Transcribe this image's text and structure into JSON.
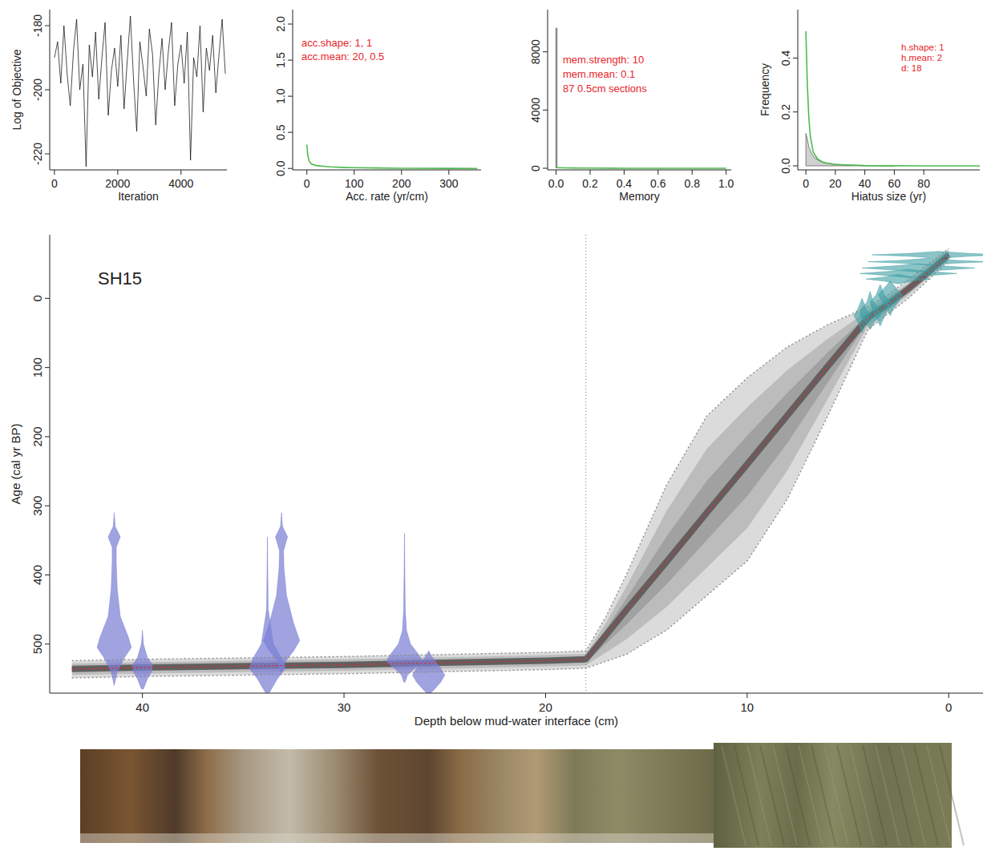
{
  "chart_data": [
    {
      "type": "line",
      "x_label": "Iteration",
      "y_label": "Log of Objective",
      "x": [
        0,
        100,
        200,
        300,
        400,
        500,
        600,
        700,
        800,
        900,
        1000,
        1100,
        1200,
        1300,
        1400,
        1500,
        1600,
        1700,
        1800,
        1900,
        2000,
        2100,
        2200,
        2300,
        2400,
        2500,
        2600,
        2700,
        2800,
        2900,
        3000,
        3100,
        3200,
        3300,
        3400,
        3500,
        3600,
        3700,
        3800,
        3900,
        4000,
        4100,
        4200,
        4300,
        4400,
        4500,
        4600,
        4700,
        4800,
        4900,
        5000,
        5100,
        5200,
        5300,
        5400
      ],
      "series": [
        {
          "color": "#000000",
          "values": [
            -190,
            -185,
            -198,
            -180,
            -195,
            -205,
            -188,
            -178,
            -200,
            -192,
            -224,
            -186,
            -196,
            -182,
            -203,
            -190,
            -179,
            -208,
            -194,
            -187,
            -199,
            -183,
            -206,
            -191,
            -177,
            -197,
            -213,
            -185,
            -193,
            -202,
            -181,
            -189,
            -211,
            -195,
            -184,
            -200,
            -188,
            -179,
            -205,
            -192,
            -186,
            -198,
            -182,
            -222,
            -190,
            -196,
            -180,
            -207,
            -187,
            -194,
            -183,
            -201,
            -189,
            -178,
            -195
          ]
        }
      ],
      "xlim": [
        -150,
        5450
      ],
      "xticks": [
        0,
        2000,
        4000
      ],
      "ylim": [
        -225,
        -175
      ],
      "yticks": [
        -220,
        -200,
        -180
      ]
    },
    {
      "type": "line",
      "x_label": "Acc. rate (yr/cm)",
      "annotations": [
        "acc.shape: 1, 1",
        "acc.mean: 20, 0.5"
      ],
      "series": [
        {
          "color": "#4dbb4d",
          "x": [
            0,
            2,
            5,
            10,
            20,
            35,
            50,
            75,
            100,
            150,
            200,
            300,
            360
          ],
          "values": [
            0.33,
            0.18,
            0.1,
            0.06,
            0.04,
            0.03,
            0.022,
            0.015,
            0.01,
            0.006,
            0.003,
            0.001,
            0
          ]
        }
      ],
      "xlim": [
        -30,
        368
      ],
      "xticks": [
        0,
        100,
        200,
        300
      ],
      "ylim": [
        -0.02,
        2.2
      ],
      "yticks": [
        {
          "value": 0,
          "label": "0.0"
        },
        {
          "value": 0.5,
          "label": "0.5"
        },
        {
          "value": 1,
          "label": "1.0"
        },
        {
          "value": 1.5,
          "label": "1.5"
        },
        {
          "value": 2,
          "label": "2.0"
        }
      ]
    },
    {
      "type": "line",
      "x_label": "Memory",
      "annotations": [
        "mem.strength: 10",
        "mem.mean: 0.1",
        "87 0.5cm sections"
      ],
      "series": [
        {
          "color": "#888888",
          "x": [
            0,
            0,
            0.004,
            0.004
          ],
          "values": [
            0,
            9600,
            9600,
            0
          ]
        },
        {
          "color": "#4dbb4d",
          "x": [
            0,
            0.05,
            0.1,
            0.2,
            0.4,
            0.6,
            0.8,
            1
          ],
          "values": [
            40,
            30,
            22,
            12,
            4,
            1,
            0,
            0
          ]
        }
      ],
      "xlim": [
        -0.05,
        1.03
      ],
      "xticks": [
        {
          "value": 0,
          "label": "0.0"
        },
        0.2,
        0.4,
        0.6,
        0.8,
        {
          "value": 1,
          "label": "1.0"
        }
      ],
      "ylim": [
        -110,
        10900
      ],
      "yticks": [
        0,
        4000,
        8000
      ]
    },
    {
      "type": "line",
      "x_label": "Hiatus size (yr)",
      "y_label": "Frequency",
      "annotations": [
        "h.shape: 1",
        "h.mean: 2",
        "d: 18"
      ],
      "series": [
        {
          "type": "area",
          "color": "#aaaaaa",
          "x": [
            0,
            1,
            2,
            4,
            6,
            8,
            10,
            15,
            20,
            30,
            40,
            60
          ],
          "values": [
            0.12,
            0.1,
            0.07,
            0.045,
            0.03,
            0.022,
            0.016,
            0.01,
            0.006,
            0.002,
            0.001,
            0
          ]
        },
        {
          "color": "#4dbb4d",
          "x": [
            0,
            1,
            2,
            3,
            5,
            8,
            12,
            20,
            40,
            80,
            118
          ],
          "values": [
            0.5,
            0.3,
            0.18,
            0.11,
            0.05,
            0.025,
            0.012,
            0.005,
            0.001,
            0,
            0
          ]
        }
      ],
      "xlim": [
        -5.5,
        118
      ],
      "xticks": [
        0,
        20,
        40,
        60,
        80
      ],
      "ylim": [
        -0.015,
        0.58
      ],
      "yticks": [
        {
          "value": 0,
          "label": "0.0"
        },
        0.2,
        0.4
      ]
    },
    {
      "type": "agedepth",
      "title": "SH15",
      "x_label": "Depth below mud-water interface (cm)",
      "y_label": "Age (cal yr BP)",
      "x": [
        43.5,
        40,
        35,
        30,
        25,
        20,
        18,
        17,
        16,
        14,
        12,
        10,
        8,
        6,
        4,
        3,
        2,
        1,
        0
      ],
      "series": [
        {
          "color": "#888888",
          "line_style": "dotted",
          "values": [
            524,
            522,
            520,
            518,
            515,
            512,
            510,
            460,
            400,
            270,
            170,
            115,
            70,
            38,
            12,
            -6,
            -27,
            -50,
            -72
          ]
        },
        {
          "color": "#e8242a",
          "line_style": "dotted",
          "values": [
            536,
            534,
            532,
            530,
            527,
            524,
            522,
            487,
            451,
            381,
            310,
            240,
            169,
            98,
            28,
            8,
            -14,
            -38,
            -63
          ]
        },
        {
          "color": "#888888",
          "line_style": "dotted",
          "values": [
            549,
            547,
            545,
            543,
            540,
            537,
            535,
            525,
            515,
            480,
            430,
            380,
            290,
            170,
            45,
            22,
            0,
            -27,
            -55
          ]
        }
      ],
      "xlim": [
        44.6,
        -1.7
      ],
      "xticks": [
        40,
        30,
        20,
        10,
        0
      ],
      "ylim": [
        571,
        -92
      ],
      "yticks": [
        0,
        100,
        200,
        300,
        400,
        500
      ],
      "hiatus_depth": 18,
      "calibrated_dates": {
        "color": "#7b7fd4",
        "dates": [
          {
            "depth": 41.4,
            "ages": [
              310,
              330,
              345,
              360,
              380,
              420,
              460,
              490,
              505,
              520,
              540,
              560
            ],
            "density": [
              0,
              0.05,
              0.3,
              0.1,
              0.1,
              0.15,
              0.3,
              0.7,
              0.85,
              0.5,
              0.15,
              0
            ]
          },
          {
            "depth": 40,
            "ages": [
              480,
              500,
              520,
              530,
              540,
              550,
              565
            ],
            "density": [
              0,
              0.05,
              0.25,
              0.5,
              0.45,
              0.25,
              0.05
            ]
          },
          {
            "depth": 33.8,
            "ages": [
              345,
              400,
              450,
              500,
              520,
              535,
              550,
              570
            ],
            "density": [
              0,
              0.02,
              0.04,
              0.3,
              0.7,
              0.9,
              0.5,
              0.1
            ]
          },
          {
            "depth": 33.1,
            "ages": [
              310,
              330,
              345,
              365,
              390,
              430,
              470,
              495,
              510,
              525,
              540
            ],
            "density": [
              0,
              0.05,
              0.3,
              0.1,
              0.12,
              0.25,
              0.6,
              0.9,
              0.6,
              0.2,
              0.05
            ]
          },
          {
            "depth": 27,
            "ages": [
              340,
              400,
              450,
              480,
              500,
              515,
              525,
              535,
              545,
              555
            ],
            "density": [
              0,
              0.02,
              0.04,
              0.1,
              0.3,
              0.7,
              0.9,
              0.5,
              0.15,
              0.03
            ]
          },
          {
            "depth": 25.8,
            "ages": [
              510,
              520,
              535,
              545,
              555,
              565,
              571
            ],
            "density": [
              0,
              0.2,
              0.6,
              0.8,
              0.6,
              0.3,
              0.1
            ]
          }
        ]
      },
      "lead_dates": {
        "color": "#3e9ea3",
        "dates": [
          {
            "depth": 0.5,
            "ages": [
              -68,
              -65,
              -63,
              -61,
              -58
            ],
            "density": [
              0,
              1.5,
              3.3,
              1.5,
              0
            ]
          },
          {
            "depth": 1.0,
            "ages": [
              -58,
              -55,
              -53,
              -51,
              -48
            ],
            "density": [
              0,
              1.4,
              3.0,
              1.4,
              0
            ]
          },
          {
            "depth": 1.5,
            "ages": [
              -50,
              -47,
              -44,
              -41,
              -38
            ],
            "density": [
              0,
              1.2,
              2.8,
              1.2,
              0
            ]
          },
          {
            "depth": 2.0,
            "ages": [
              -42,
              -39,
              -36,
              -33,
              -30
            ],
            "density": [
              0,
              1.0,
              2.4,
              1.0,
              0
            ]
          },
          {
            "depth": 2.5,
            "ages": [
              -35,
              -31,
              -28,
              -25,
              -21
            ],
            "density": [
              0,
              0.7,
              1.6,
              0.7,
              0
            ]
          },
          {
            "depth": 2.9,
            "ages": [
              -25,
              -15,
              -5,
              5,
              15,
              25
            ],
            "density": [
              0,
              0.3,
              0.6,
              0.4,
              0.15,
              0
            ]
          },
          {
            "depth": 3.4,
            "ages": [
              -20,
              -5,
              5,
              15,
              30,
              40
            ],
            "density": [
              0,
              0.2,
              0.5,
              0.4,
              0.15,
              0
            ]
          },
          {
            "depth": 3.9,
            "ages": [
              -10,
              5,
              15,
              25,
              35,
              45
            ],
            "density": [
              0,
              0.15,
              0.45,
              0.5,
              0.2,
              0
            ]
          },
          {
            "depth": 4.3,
            "ages": [
              0,
              15,
              25,
              35,
              50
            ],
            "density": [
              0,
              0.2,
              0.4,
              0.2,
              0
            ]
          }
        ]
      }
    }
  ]
}
